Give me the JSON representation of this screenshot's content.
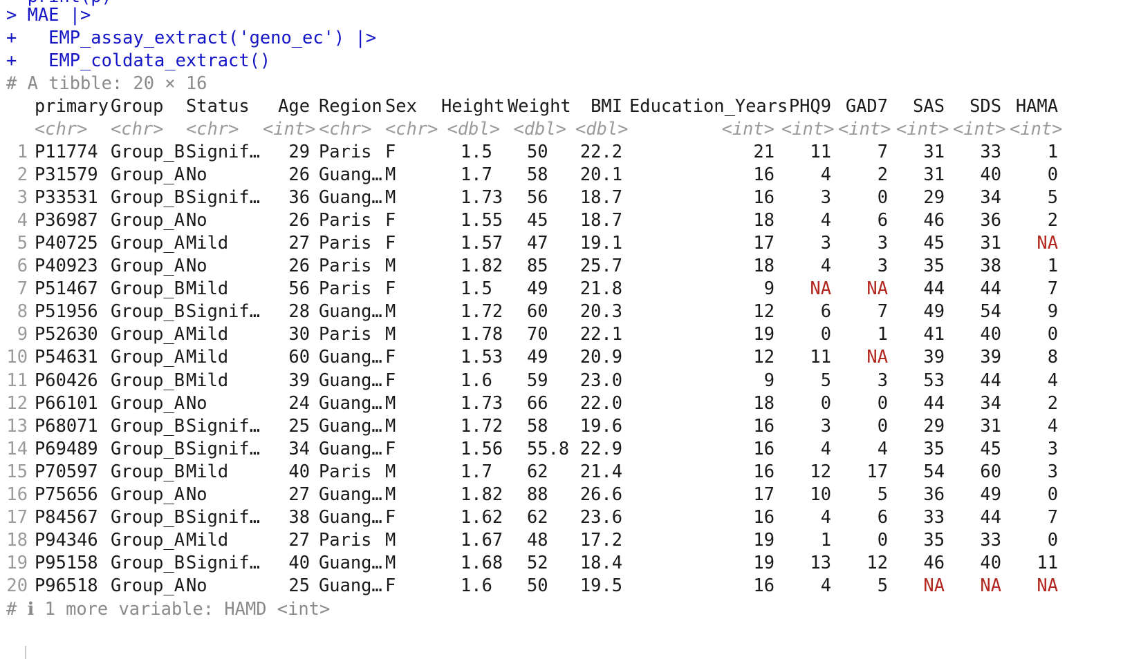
{
  "console": {
    "clipped_prev_line": "  print(p)  ",
    "lines": [
      {
        "prompt": ">",
        "code": "MAE |>"
      },
      {
        "prompt": "+",
        "code": "  EMP_assay_extract('geno_ec') |>"
      },
      {
        "prompt": "+",
        "code": "  EMP_coldata_extract()"
      }
    ],
    "tibble_header": "# A tibble: 20 × 16",
    "footer": "# ℹ 1 more variable: HAMD <int>"
  },
  "table": {
    "columns": [
      {
        "name": "primary",
        "type": "<chr>"
      },
      {
        "name": "Group",
        "type": "<chr>"
      },
      {
        "name": "Status",
        "type": "<chr>"
      },
      {
        "name": "Age",
        "type": "<int>"
      },
      {
        "name": "Region",
        "type": "<chr>"
      },
      {
        "name": "Sex",
        "type": "<chr>"
      },
      {
        "name": "Height",
        "type": "<dbl>"
      },
      {
        "name": "Weight",
        "type": "<dbl>"
      },
      {
        "name": "BMI",
        "type": "<dbl>"
      },
      {
        "name": "Education_Years",
        "type": "<int>"
      },
      {
        "name": "PHQ9",
        "type": "<int>"
      },
      {
        "name": "GAD7",
        "type": "<int>"
      },
      {
        "name": "SAS",
        "type": "<int>"
      },
      {
        "name": "SDS",
        "type": "<int>"
      },
      {
        "name": "HAMA",
        "type": "<int>"
      }
    ],
    "rows": [
      [
        "1",
        "P11774",
        "Group_B",
        "Signif…",
        "29",
        "Paris",
        "F",
        "1.5",
        "50",
        "22.2",
        "21",
        "11",
        "7",
        "31",
        "33",
        "1"
      ],
      [
        "2",
        "P31579",
        "Group_A",
        "No",
        "26",
        "Guang…",
        "M",
        "1.7",
        "58",
        "20.1",
        "16",
        "4",
        "2",
        "31",
        "40",
        "0"
      ],
      [
        "3",
        "P33531",
        "Group_B",
        "Signif…",
        "36",
        "Guang…",
        "M",
        "1.73",
        "56",
        "18.7",
        "16",
        "3",
        "0",
        "29",
        "34",
        "5"
      ],
      [
        "4",
        "P36987",
        "Group_A",
        "No",
        "26",
        "Paris",
        "F",
        "1.55",
        "45",
        "18.7",
        "18",
        "4",
        "6",
        "46",
        "36",
        "2"
      ],
      [
        "5",
        "P40725",
        "Group_A",
        "Mild",
        "27",
        "Paris",
        "F",
        "1.57",
        "47",
        "19.1",
        "17",
        "3",
        "3",
        "45",
        "31",
        "NA"
      ],
      [
        "6",
        "P40923",
        "Group_A",
        "No",
        "26",
        "Paris",
        "M",
        "1.82",
        "85",
        "25.7",
        "18",
        "4",
        "3",
        "35",
        "38",
        "1"
      ],
      [
        "7",
        "P51467",
        "Group_B",
        "Mild",
        "56",
        "Paris",
        "F",
        "1.5",
        "49",
        "21.8",
        "9",
        "NA",
        "NA",
        "44",
        "44",
        "7"
      ],
      [
        "8",
        "P51956",
        "Group_B",
        "Signif…",
        "28",
        "Guang…",
        "M",
        "1.72",
        "60",
        "20.3",
        "12",
        "6",
        "7",
        "49",
        "54",
        "9"
      ],
      [
        "9",
        "P52630",
        "Group_A",
        "Mild",
        "30",
        "Paris",
        "M",
        "1.78",
        "70",
        "22.1",
        "19",
        "0",
        "1",
        "41",
        "40",
        "0"
      ],
      [
        "10",
        "P54631",
        "Group_A",
        "Mild",
        "60",
        "Guang…",
        "F",
        "1.53",
        "49",
        "20.9",
        "12",
        "11",
        "NA",
        "39",
        "39",
        "8"
      ],
      [
        "11",
        "P60426",
        "Group_B",
        "Mild",
        "39",
        "Guang…",
        "F",
        "1.6",
        "59",
        "23.0",
        "9",
        "5",
        "3",
        "53",
        "44",
        "4"
      ],
      [
        "12",
        "P66101",
        "Group_A",
        "No",
        "24",
        "Guang…",
        "M",
        "1.73",
        "66",
        "22.0",
        "18",
        "0",
        "0",
        "44",
        "34",
        "2"
      ],
      [
        "13",
        "P68071",
        "Group_B",
        "Signif…",
        "25",
        "Guang…",
        "M",
        "1.72",
        "58",
        "19.6",
        "16",
        "3",
        "0",
        "29",
        "31",
        "4"
      ],
      [
        "14",
        "P69489",
        "Group_B",
        "Signif…",
        "34",
        "Guang…",
        "F",
        "1.56",
        "55.8",
        "22.9",
        "16",
        "4",
        "4",
        "35",
        "45",
        "3"
      ],
      [
        "15",
        "P70597",
        "Group_B",
        "Mild",
        "40",
        "Paris",
        "M",
        "1.7",
        "62",
        "21.4",
        "16",
        "12",
        "17",
        "54",
        "60",
        "3"
      ],
      [
        "16",
        "P75656",
        "Group_A",
        "No",
        "27",
        "Guang…",
        "M",
        "1.82",
        "88",
        "26.6",
        "17",
        "10",
        "5",
        "36",
        "49",
        "0"
      ],
      [
        "17",
        "P84567",
        "Group_B",
        "Signif…",
        "38",
        "Guang…",
        "F",
        "1.62",
        "62",
        "23.6",
        "16",
        "4",
        "6",
        "33",
        "44",
        "7"
      ],
      [
        "18",
        "P94346",
        "Group_A",
        "Mild",
        "27",
        "Paris",
        "M",
        "1.67",
        "48",
        "17.2",
        "19",
        "1",
        "0",
        "35",
        "33",
        "0"
      ],
      [
        "19",
        "P95158",
        "Group_B",
        "Signif…",
        "40",
        "Guang…",
        "M",
        "1.68",
        "52",
        "18.4",
        "19",
        "13",
        "12",
        "46",
        "40",
        "11"
      ],
      [
        "20",
        "P96518",
        "Group_A",
        "No",
        "25",
        "Guang…",
        "F",
        "1.6",
        "50",
        "19.5",
        "16",
        "4",
        "5",
        "NA",
        "NA",
        "NA"
      ]
    ]
  },
  "colors": {
    "command": "#1515c8",
    "comment": "#8a8a8a",
    "na": "#b3261e"
  }
}
